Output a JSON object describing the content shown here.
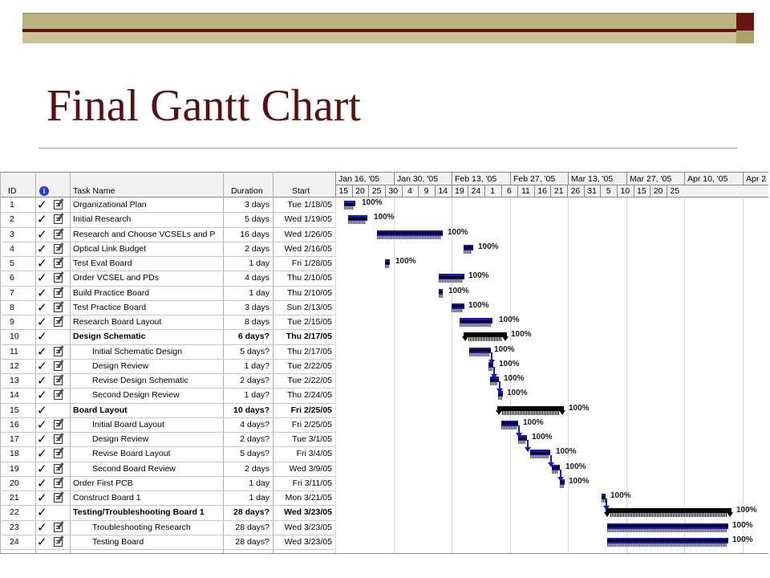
{
  "slide": {
    "title": "Final Gantt Chart"
  },
  "table": {
    "headers": {
      "id": "ID",
      "info": "info-icon",
      "task_name": "Task Name",
      "duration": "Duration",
      "start": "Start"
    },
    "rows": [
      {
        "id": "1",
        "name": "Organizational Plan",
        "duration": "3 days",
        "start": "Tue 1/18/05",
        "summary": false,
        "indent": 0,
        "complete": "100%"
      },
      {
        "id": "2",
        "name": "Initial Research",
        "duration": "5 days",
        "start": "Wed 1/19/05",
        "summary": false,
        "indent": 0,
        "complete": "100%"
      },
      {
        "id": "3",
        "name": "Research and Choose VCSELs and P",
        "duration": "16 days",
        "start": "Wed 1/26/05",
        "summary": false,
        "indent": 0,
        "complete": "100%"
      },
      {
        "id": "4",
        "name": "Optical Link Budget",
        "duration": "2 days",
        "start": "Wed 2/16/05",
        "summary": false,
        "indent": 0,
        "complete": "100%"
      },
      {
        "id": "5",
        "name": "Test Eval Board",
        "duration": "1 day",
        "start": "Fri 1/28/05",
        "summary": false,
        "indent": 0,
        "complete": "100%"
      },
      {
        "id": "6",
        "name": "Order VCSEL and PDs",
        "duration": "4 days",
        "start": "Thu 2/10/05",
        "summary": false,
        "indent": 0,
        "complete": "100%"
      },
      {
        "id": "7",
        "name": "Build Practice Board",
        "duration": "1 day",
        "start": "Thu 2/10/05",
        "summary": false,
        "indent": 0,
        "complete": "100%"
      },
      {
        "id": "8",
        "name": "Test Practice Board",
        "duration": "3 days",
        "start": "Sun 2/13/05",
        "summary": false,
        "indent": 0,
        "complete": "100%"
      },
      {
        "id": "9",
        "name": "Research Board Layout",
        "duration": "8 days",
        "start": "Tue 2/15/05",
        "summary": false,
        "indent": 0,
        "complete": "100%"
      },
      {
        "id": "10",
        "name": "Design Schematic",
        "duration": "6 days?",
        "start": "Thu 2/17/05",
        "summary": true,
        "indent": 0,
        "complete": "100%"
      },
      {
        "id": "11",
        "name": "Initial Schematic Design",
        "duration": "5 days?",
        "start": "Thu 2/17/05",
        "summary": false,
        "indent": 1,
        "complete": "100%"
      },
      {
        "id": "12",
        "name": "Design Review",
        "duration": "1 day?",
        "start": "Tue 2/22/05",
        "summary": false,
        "indent": 1,
        "complete": "100%"
      },
      {
        "id": "13",
        "name": "Revise Design Schematic",
        "duration": "2 days?",
        "start": "Tue 2/22/05",
        "summary": false,
        "indent": 1,
        "complete": "100%"
      },
      {
        "id": "14",
        "name": "Second Design Review",
        "duration": "1 day?",
        "start": "Thu 2/24/05",
        "summary": false,
        "indent": 1,
        "complete": "100%"
      },
      {
        "id": "15",
        "name": "Board Layout",
        "duration": "10 days?",
        "start": "Fri 2/25/05",
        "summary": true,
        "indent": 0,
        "complete": "100%"
      },
      {
        "id": "16",
        "name": "Initial Board Layout",
        "duration": "4 days?",
        "start": "Fri 2/25/05",
        "summary": false,
        "indent": 1,
        "complete": "100%"
      },
      {
        "id": "17",
        "name": "Design Review",
        "duration": "2 days?",
        "start": "Tue 3/1/05",
        "summary": false,
        "indent": 1,
        "complete": "100%"
      },
      {
        "id": "18",
        "name": "Revise Board Layout",
        "duration": "5 days?",
        "start": "Fri 3/4/05",
        "summary": false,
        "indent": 1,
        "complete": "100%"
      },
      {
        "id": "19",
        "name": "Second Board Review",
        "duration": "2 days",
        "start": "Wed 3/9/05",
        "summary": false,
        "indent": 1,
        "complete": "100%"
      },
      {
        "id": "20",
        "name": "Order First PCB",
        "duration": "1 day",
        "start": "Fri 3/11/05",
        "summary": false,
        "indent": 0,
        "complete": "100%"
      },
      {
        "id": "21",
        "name": "Construct Board 1",
        "duration": "1 day",
        "start": "Mon 3/21/05",
        "summary": false,
        "indent": 0,
        "complete": "100%"
      },
      {
        "id": "22",
        "name": "Testing/Troubleshooting Board 1",
        "duration": "28 days?",
        "start": "Wed 3/23/05",
        "summary": true,
        "indent": 0,
        "complete": "100%"
      },
      {
        "id": "23",
        "name": "Troubleshooting Research",
        "duration": "28 days?",
        "start": "Wed 3/23/05",
        "summary": false,
        "indent": 1,
        "complete": "100%"
      },
      {
        "id": "24",
        "name": "Testing Board",
        "duration": "28 days?",
        "start": "Wed 3/23/05",
        "summary": false,
        "indent": 1,
        "complete": "100%"
      }
    ]
  },
  "timescale": {
    "major": [
      "Jan 16, '05",
      "Jan 30, '05",
      "Feb 13, '05",
      "Feb 27, '05",
      "Mar 13, '05",
      "Mar 27, '05",
      "Apr 10, '05",
      "Apr 2"
    ],
    "minor": [
      "15",
      "20",
      "25",
      "30",
      "4",
      "9",
      "14",
      "19",
      "24",
      "1",
      "6",
      "11",
      "16",
      "21",
      "26",
      "31",
      "5",
      "10",
      "15",
      "20",
      "25"
    ]
  },
  "colors": {
    "task_bar": "#1414d8",
    "summary_bar": "#000000",
    "title": "#5a1010",
    "theme_band": "#b9b47e",
    "theme_dark": "#6b1414"
  }
}
